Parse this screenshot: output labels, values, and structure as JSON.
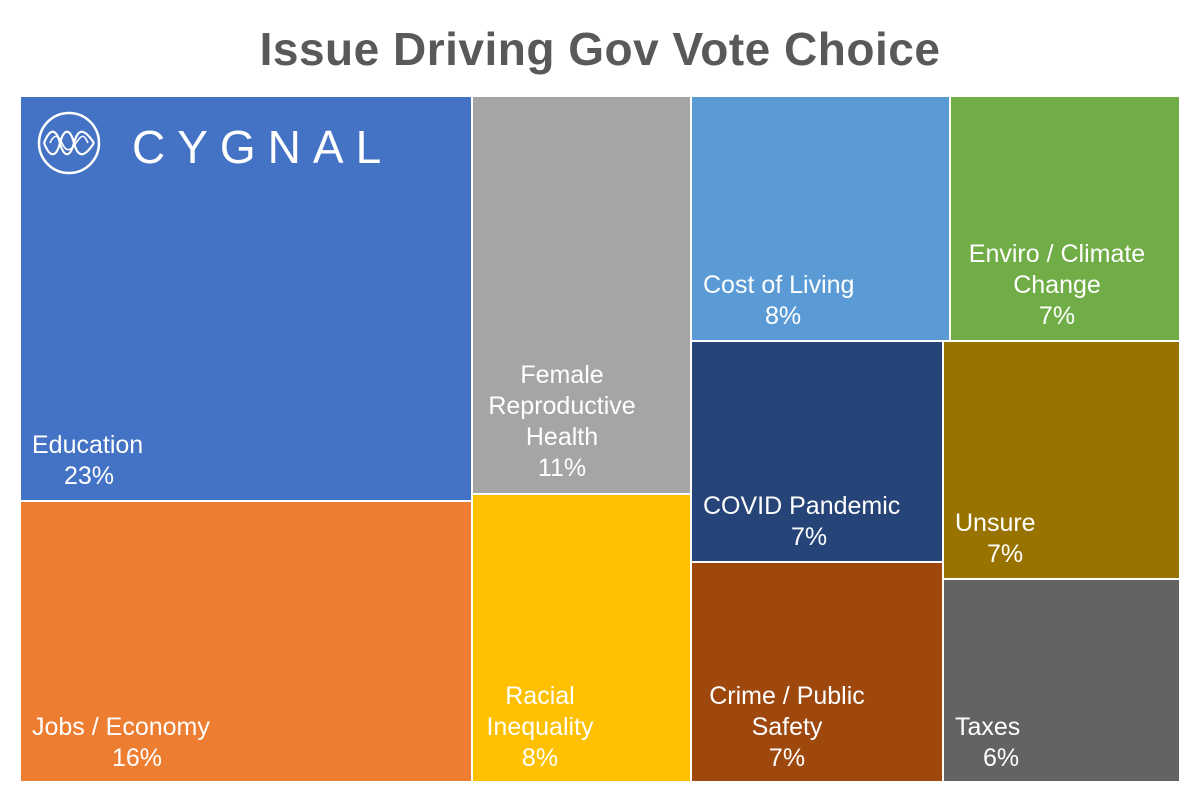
{
  "logo_text": "CYGNAL",
  "chart_data": {
    "type": "treemap",
    "title": "Issue Driving Gov Vote Choice",
    "items": [
      {
        "label": "Education",
        "value": 23,
        "display": "23%",
        "color": "#4472C4"
      },
      {
        "label": "Jobs / Economy",
        "value": 16,
        "display": "16%",
        "color": "#ED7D31"
      },
      {
        "label": "Female Reproductive Health",
        "value": 11,
        "display": "11%",
        "color": "#A5A5A5"
      },
      {
        "label": "Racial Inequality",
        "value": 8,
        "display": "8%",
        "color": "#FFC000"
      },
      {
        "label": "Cost of Living",
        "value": 8,
        "display": "8%",
        "color": "#5B9BD5"
      },
      {
        "label": "Enviro / Climate Change",
        "value": 7,
        "display": "7%",
        "color": "#70AD47"
      },
      {
        "label": "COVID Pandemic",
        "value": 7,
        "display": "7%",
        "color": "#264478"
      },
      {
        "label": "Unsure",
        "value": 7,
        "display": "7%",
        "color": "#997300"
      },
      {
        "label": "Crime / Public Safety",
        "value": 7,
        "display": "7%",
        "color": "#9E480E"
      },
      {
        "label": "Taxes",
        "value": 6,
        "display": "6%",
        "color": "#636363"
      }
    ]
  }
}
